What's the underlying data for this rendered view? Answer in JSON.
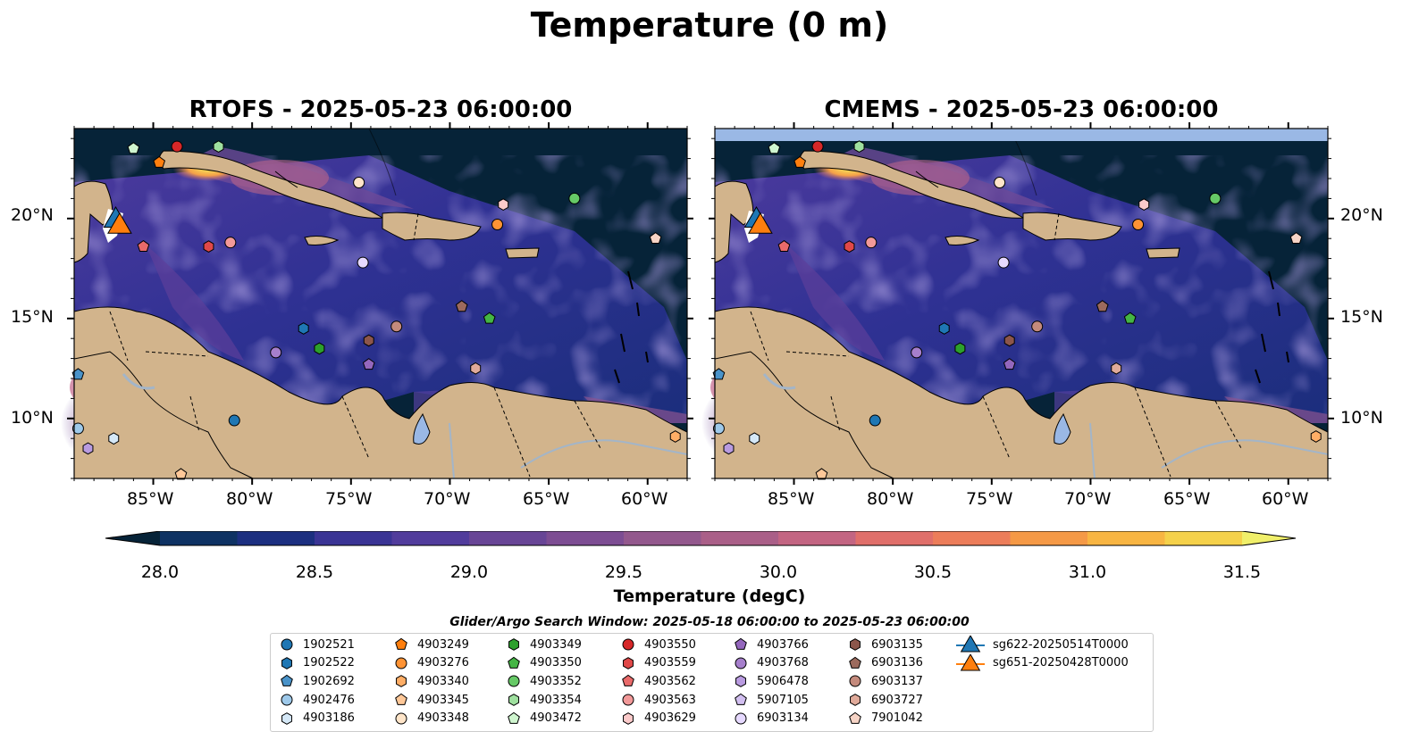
{
  "suptitle": "Temperature (0 m)",
  "panels": [
    {
      "title": "RTOFS - 2025-05-23 06:00:00"
    },
    {
      "title": "CMEMS - 2025-05-23 06:00:00"
    }
  ],
  "axes": {
    "lon_ticks": [
      "85°W",
      "80°W",
      "75°W",
      "70°W",
      "65°W",
      "60°W"
    ],
    "lat_ticks": [
      "20°N",
      "15°N",
      "10°N"
    ]
  },
  "colorbar": {
    "label": "Temperature (degC)",
    "ticks": [
      "28.0",
      "28.5",
      "29.0",
      "29.5",
      "30.0",
      "30.5",
      "31.0",
      "31.5"
    ],
    "colors": [
      "#062338",
      "#0e3263",
      "#1c2f80",
      "#3a3495",
      "#513c9c",
      "#684596",
      "#7d4d93",
      "#93588d",
      "#aa5f88",
      "#c36582",
      "#e06f6a",
      "#ec7d5a",
      "#f59946",
      "#f8b542",
      "#f5d14a",
      "#f0ef6a"
    ]
  },
  "search_window": "Glider/Argo Search Window: 2025-05-18 06:00:00 to 2025-05-23 06:00:00",
  "legend": [
    {
      "label": "1902521",
      "marker": "circle",
      "color": "#1f77b4"
    },
    {
      "label": "1902522",
      "marker": "hexagon",
      "color": "#1f77b4"
    },
    {
      "label": "1902692",
      "marker": "pentagon",
      "color": "#4a93c9"
    },
    {
      "label": "4902476",
      "marker": "circle",
      "color": "#9ec9ea"
    },
    {
      "label": "4903186",
      "marker": "hexagon",
      "color": "#d5e8f7"
    },
    {
      "label": "4903249",
      "marker": "pentagon",
      "color": "#ff7f0e"
    },
    {
      "label": "4903276",
      "marker": "circle",
      "color": "#ff9334"
    },
    {
      "label": "4903340",
      "marker": "hexagon",
      "color": "#ffae66"
    },
    {
      "label": "4903345",
      "marker": "pentagon",
      "color": "#ffc898"
    },
    {
      "label": "4903348",
      "marker": "circle",
      "color": "#ffe5c9"
    },
    {
      "label": "4903349",
      "marker": "hexagon",
      "color": "#2ca02c"
    },
    {
      "label": "4903350",
      "marker": "pentagon",
      "color": "#44b544"
    },
    {
      "label": "4903352",
      "marker": "circle",
      "color": "#66c966"
    },
    {
      "label": "4903354",
      "marker": "hexagon",
      "color": "#9fe09f"
    },
    {
      "label": "4903472",
      "marker": "pentagon",
      "color": "#cff5cf"
    },
    {
      "label": "4903550",
      "marker": "circle",
      "color": "#d62728"
    },
    {
      "label": "4903559",
      "marker": "hexagon",
      "color": "#e04848"
    },
    {
      "label": "4903562",
      "marker": "pentagon",
      "color": "#e96a6a"
    },
    {
      "label": "4903563",
      "marker": "circle",
      "color": "#f29999"
    },
    {
      "label": "4903629",
      "marker": "hexagon",
      "color": "#fbcaca"
    },
    {
      "label": "4903766",
      "marker": "pentagon",
      "color": "#9467bd"
    },
    {
      "label": "4903768",
      "marker": "circle",
      "color": "#a67fcc"
    },
    {
      "label": "5906478",
      "marker": "hexagon",
      "color": "#b99be0"
    },
    {
      "label": "5907105",
      "marker": "pentagon",
      "color": "#d2bff0"
    },
    {
      "label": "6903134",
      "marker": "circle",
      "color": "#e6d9ff"
    },
    {
      "label": "6903135",
      "marker": "hexagon",
      "color": "#8c564b"
    },
    {
      "label": "6903136",
      "marker": "pentagon",
      "color": "#9c6a5d"
    },
    {
      "label": "6903137",
      "marker": "circle",
      "color": "#c48a7c"
    },
    {
      "label": "6903727",
      "marker": "hexagon",
      "color": "#e0aa9a"
    },
    {
      "label": "7901042",
      "marker": "pentagon",
      "color": "#f7d4c6"
    },
    {
      "label": "sg622-20250514T0000",
      "marker": "triangle",
      "color": "#1f77b4"
    },
    {
      "label": "sg651-20250428T0000",
      "marker": "triangle",
      "color": "#ff7f0e"
    }
  ],
  "chart_data": {
    "type": "map",
    "field": "Sea surface temperature at 0 m",
    "units": "degC",
    "colorbar_range": [
      28.0,
      31.5
    ],
    "colorbar_extend": "both",
    "lon_range": [
      -89.0,
      -58.0
    ],
    "lat_range": [
      7.0,
      24.5
    ],
    "models": [
      "RTOFS",
      "CMEMS"
    ],
    "valid_time": "2025-05-23 06:00:00",
    "argo_floats": [
      {
        "id": "4903472",
        "lon": -86.0,
        "lat": 23.5
      },
      {
        "id": "4903550",
        "lon": -83.8,
        "lat": 23.6
      },
      {
        "id": "4903354",
        "lon": -81.7,
        "lat": 23.6
      },
      {
        "id": "4903249",
        "lon": -84.7,
        "lat": 22.8
      },
      {
        "id": "4903348",
        "lon": -74.6,
        "lat": 21.8
      },
      {
        "id": "4903629",
        "lon": -67.3,
        "lat": 20.7
      },
      {
        "id": "4903352",
        "lon": -63.7,
        "lat": 21.0
      },
      {
        "id": "4903276",
        "lon": -67.6,
        "lat": 19.7
      },
      {
        "id": "7901042",
        "lon": -59.6,
        "lat": 19.0
      },
      {
        "id": "4903562",
        "lon": -85.5,
        "lat": 18.6
      },
      {
        "id": "4903559",
        "lon": -82.2,
        "lat": 18.6
      },
      {
        "id": "4903563",
        "lon": -81.1,
        "lat": 18.8
      },
      {
        "id": "6903134",
        "lon": -74.4,
        "lat": 17.8
      },
      {
        "id": "6903136",
        "lon": -69.4,
        "lat": 15.6
      },
      {
        "id": "4903350",
        "lon": -68.0,
        "lat": 15.0
      },
      {
        "id": "1902522",
        "lon": -77.4,
        "lat": 14.5
      },
      {
        "id": "6903137",
        "lon": -72.7,
        "lat": 14.6
      },
      {
        "id": "6903135",
        "lon": -74.1,
        "lat": 13.9
      },
      {
        "id": "4903349",
        "lon": -76.6,
        "lat": 13.5
      },
      {
        "id": "4903768",
        "lon": -78.8,
        "lat": 13.3
      },
      {
        "id": "4903766",
        "lon": -74.1,
        "lat": 12.7
      },
      {
        "id": "6903727",
        "lon": -68.7,
        "lat": 12.5
      },
      {
        "id": "1902692",
        "lon": -88.8,
        "lat": 12.2
      },
      {
        "id": "1902521",
        "lon": -80.9,
        "lat": 9.9
      },
      {
        "id": "4903340",
        "lon": -58.6,
        "lat": 9.1
      },
      {
        "id": "4902476",
        "lon": -88.8,
        "lat": 9.5
      },
      {
        "id": "4903186",
        "lon": -87.0,
        "lat": 9.0
      },
      {
        "id": "5906478",
        "lon": -88.3,
        "lat": 8.5
      },
      {
        "id": "4903345",
        "lon": -83.6,
        "lat": 7.2
      }
    ],
    "gliders": [
      {
        "id": "sg622-20250514T0000",
        "lon": -86.9,
        "lat": 19.9
      },
      {
        "id": "sg651-20250428T0000",
        "lon": -86.7,
        "lat": 19.6
      }
    ]
  }
}
